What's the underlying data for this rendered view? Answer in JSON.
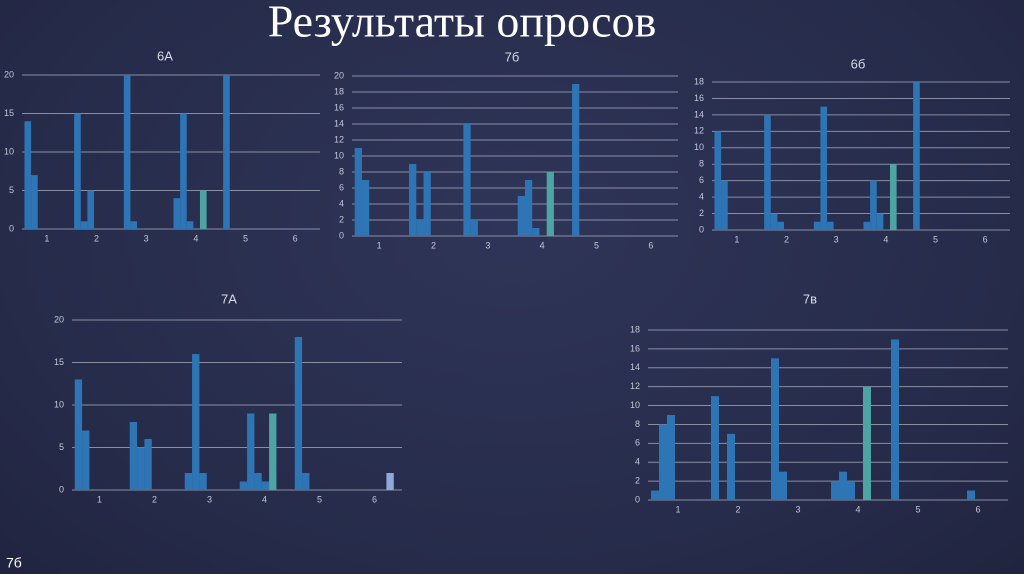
{
  "title": "Результаты опросов",
  "footer": "7б",
  "chart_data": [
    {
      "type": "bar",
      "title": "6А",
      "categories": [
        "1",
        "2",
        "3",
        "4",
        "5",
        "6"
      ],
      "ylim": [
        0,
        20
      ],
      "yticks": [
        0,
        5,
        10,
        15,
        20
      ],
      "grid": true,
      "series": [
        {
          "color": "#2e75b6",
          "values": [
            14,
            15,
            20,
            4,
            20,
            0
          ]
        },
        {
          "color": "#2e75b6",
          "values": [
            7,
            1,
            1,
            15,
            0,
            0
          ]
        },
        {
          "color": "#2e75b6",
          "values": [
            0,
            5,
            0,
            1,
            0,
            0
          ]
        },
        {
          "color": "#2e75b6",
          "values": [
            0,
            0,
            0,
            0,
            0,
            0
          ]
        },
        {
          "color": "#4ea3a3",
          "values": [
            0,
            0,
            0,
            5,
            0,
            0
          ]
        },
        {
          "color": "#8ea9db",
          "values": [
            0,
            0,
            0,
            0,
            0,
            0
          ]
        }
      ]
    },
    {
      "type": "bar",
      "title": "7б",
      "categories": [
        "1",
        "2",
        "3",
        "4",
        "5",
        "6"
      ],
      "ylim": [
        0,
        20
      ],
      "yticks": [
        0,
        2,
        4,
        6,
        8,
        10,
        12,
        14,
        16,
        18,
        20
      ],
      "grid": true,
      "series": [
        {
          "color": "#2e75b6",
          "values": [
            11,
            9,
            14,
            5,
            19,
            0
          ]
        },
        {
          "color": "#2e75b6",
          "values": [
            7,
            2,
            2,
            7,
            0,
            0
          ]
        },
        {
          "color": "#2e75b6",
          "values": [
            0,
            8,
            0,
            1,
            0,
            0
          ]
        },
        {
          "color": "#2e75b6",
          "values": [
            0,
            0,
            0,
            0,
            0,
            0
          ]
        },
        {
          "color": "#4ea3a3",
          "values": [
            0,
            0,
            0,
            8,
            0,
            0
          ]
        },
        {
          "color": "#8ea9db",
          "values": [
            0,
            0,
            0,
            0,
            0,
            0
          ]
        }
      ]
    },
    {
      "type": "bar",
      "title": "6б",
      "categories": [
        "1",
        "2",
        "3",
        "4",
        "5",
        "6"
      ],
      "ylim": [
        0,
        18
      ],
      "yticks": [
        0,
        2,
        4,
        6,
        8,
        10,
        12,
        14,
        16,
        18
      ],
      "grid": true,
      "series": [
        {
          "color": "#2e75b6",
          "values": [
            12,
            14,
            1,
            1,
            18,
            0
          ]
        },
        {
          "color": "#2e75b6",
          "values": [
            6,
            2,
            15,
            6,
            0,
            0
          ]
        },
        {
          "color": "#2e75b6",
          "values": [
            0,
            1,
            1,
            2,
            0,
            0
          ]
        },
        {
          "color": "#2e75b6",
          "values": [
            0,
            0,
            0,
            0,
            0,
            0
          ]
        },
        {
          "color": "#4ea3a3",
          "values": [
            0,
            0,
            0,
            8,
            0,
            0
          ]
        },
        {
          "color": "#8ea9db",
          "values": [
            0,
            0,
            0,
            0,
            0,
            0
          ]
        }
      ]
    },
    {
      "type": "bar",
      "title": "7А",
      "categories": [
        "1",
        "2",
        "3",
        "4",
        "5",
        "6"
      ],
      "ylim": [
        0,
        20
      ],
      "yticks": [
        0,
        5,
        10,
        15,
        20
      ],
      "grid": true,
      "series": [
        {
          "color": "#2e75b6",
          "values": [
            13,
            8,
            2,
            1,
            18,
            0
          ]
        },
        {
          "color": "#2e75b6",
          "values": [
            7,
            5,
            16,
            9,
            2,
            0
          ]
        },
        {
          "color": "#2e75b6",
          "values": [
            0,
            6,
            2,
            2,
            0,
            0
          ]
        },
        {
          "color": "#2e75b6",
          "values": [
            0,
            0,
            0,
            1,
            0,
            0
          ]
        },
        {
          "color": "#4ea3a3",
          "values": [
            0,
            0,
            0,
            9,
            0,
            0
          ]
        },
        {
          "color": "#8ea9db",
          "values": [
            0,
            0,
            0,
            0,
            0,
            2
          ]
        }
      ]
    },
    {
      "type": "bar",
      "title": "7в",
      "categories": [
        "1",
        "2",
        "3",
        "4",
        "5",
        "6"
      ],
      "ylim": [
        0,
        18
      ],
      "yticks": [
        0,
        2,
        4,
        6,
        8,
        10,
        12,
        14,
        16,
        18
      ],
      "grid": true,
      "series": [
        {
          "color": "#2e75b6",
          "values": [
            1,
            11,
            15,
            2,
            17,
            0
          ]
        },
        {
          "color": "#2e75b6",
          "values": [
            8,
            0,
            3,
            3,
            0,
            0
          ]
        },
        {
          "color": "#2e75b6",
          "values": [
            9,
            7,
            0,
            2,
            0,
            1
          ]
        },
        {
          "color": "#2e75b6",
          "values": [
            0,
            0,
            0,
            0,
            0,
            0
          ]
        },
        {
          "color": "#4ea3a3",
          "values": [
            0,
            0,
            0,
            12,
            0,
            0
          ]
        },
        {
          "color": "#8ea9db",
          "values": [
            0,
            0,
            0,
            0,
            0,
            0
          ]
        }
      ]
    }
  ]
}
